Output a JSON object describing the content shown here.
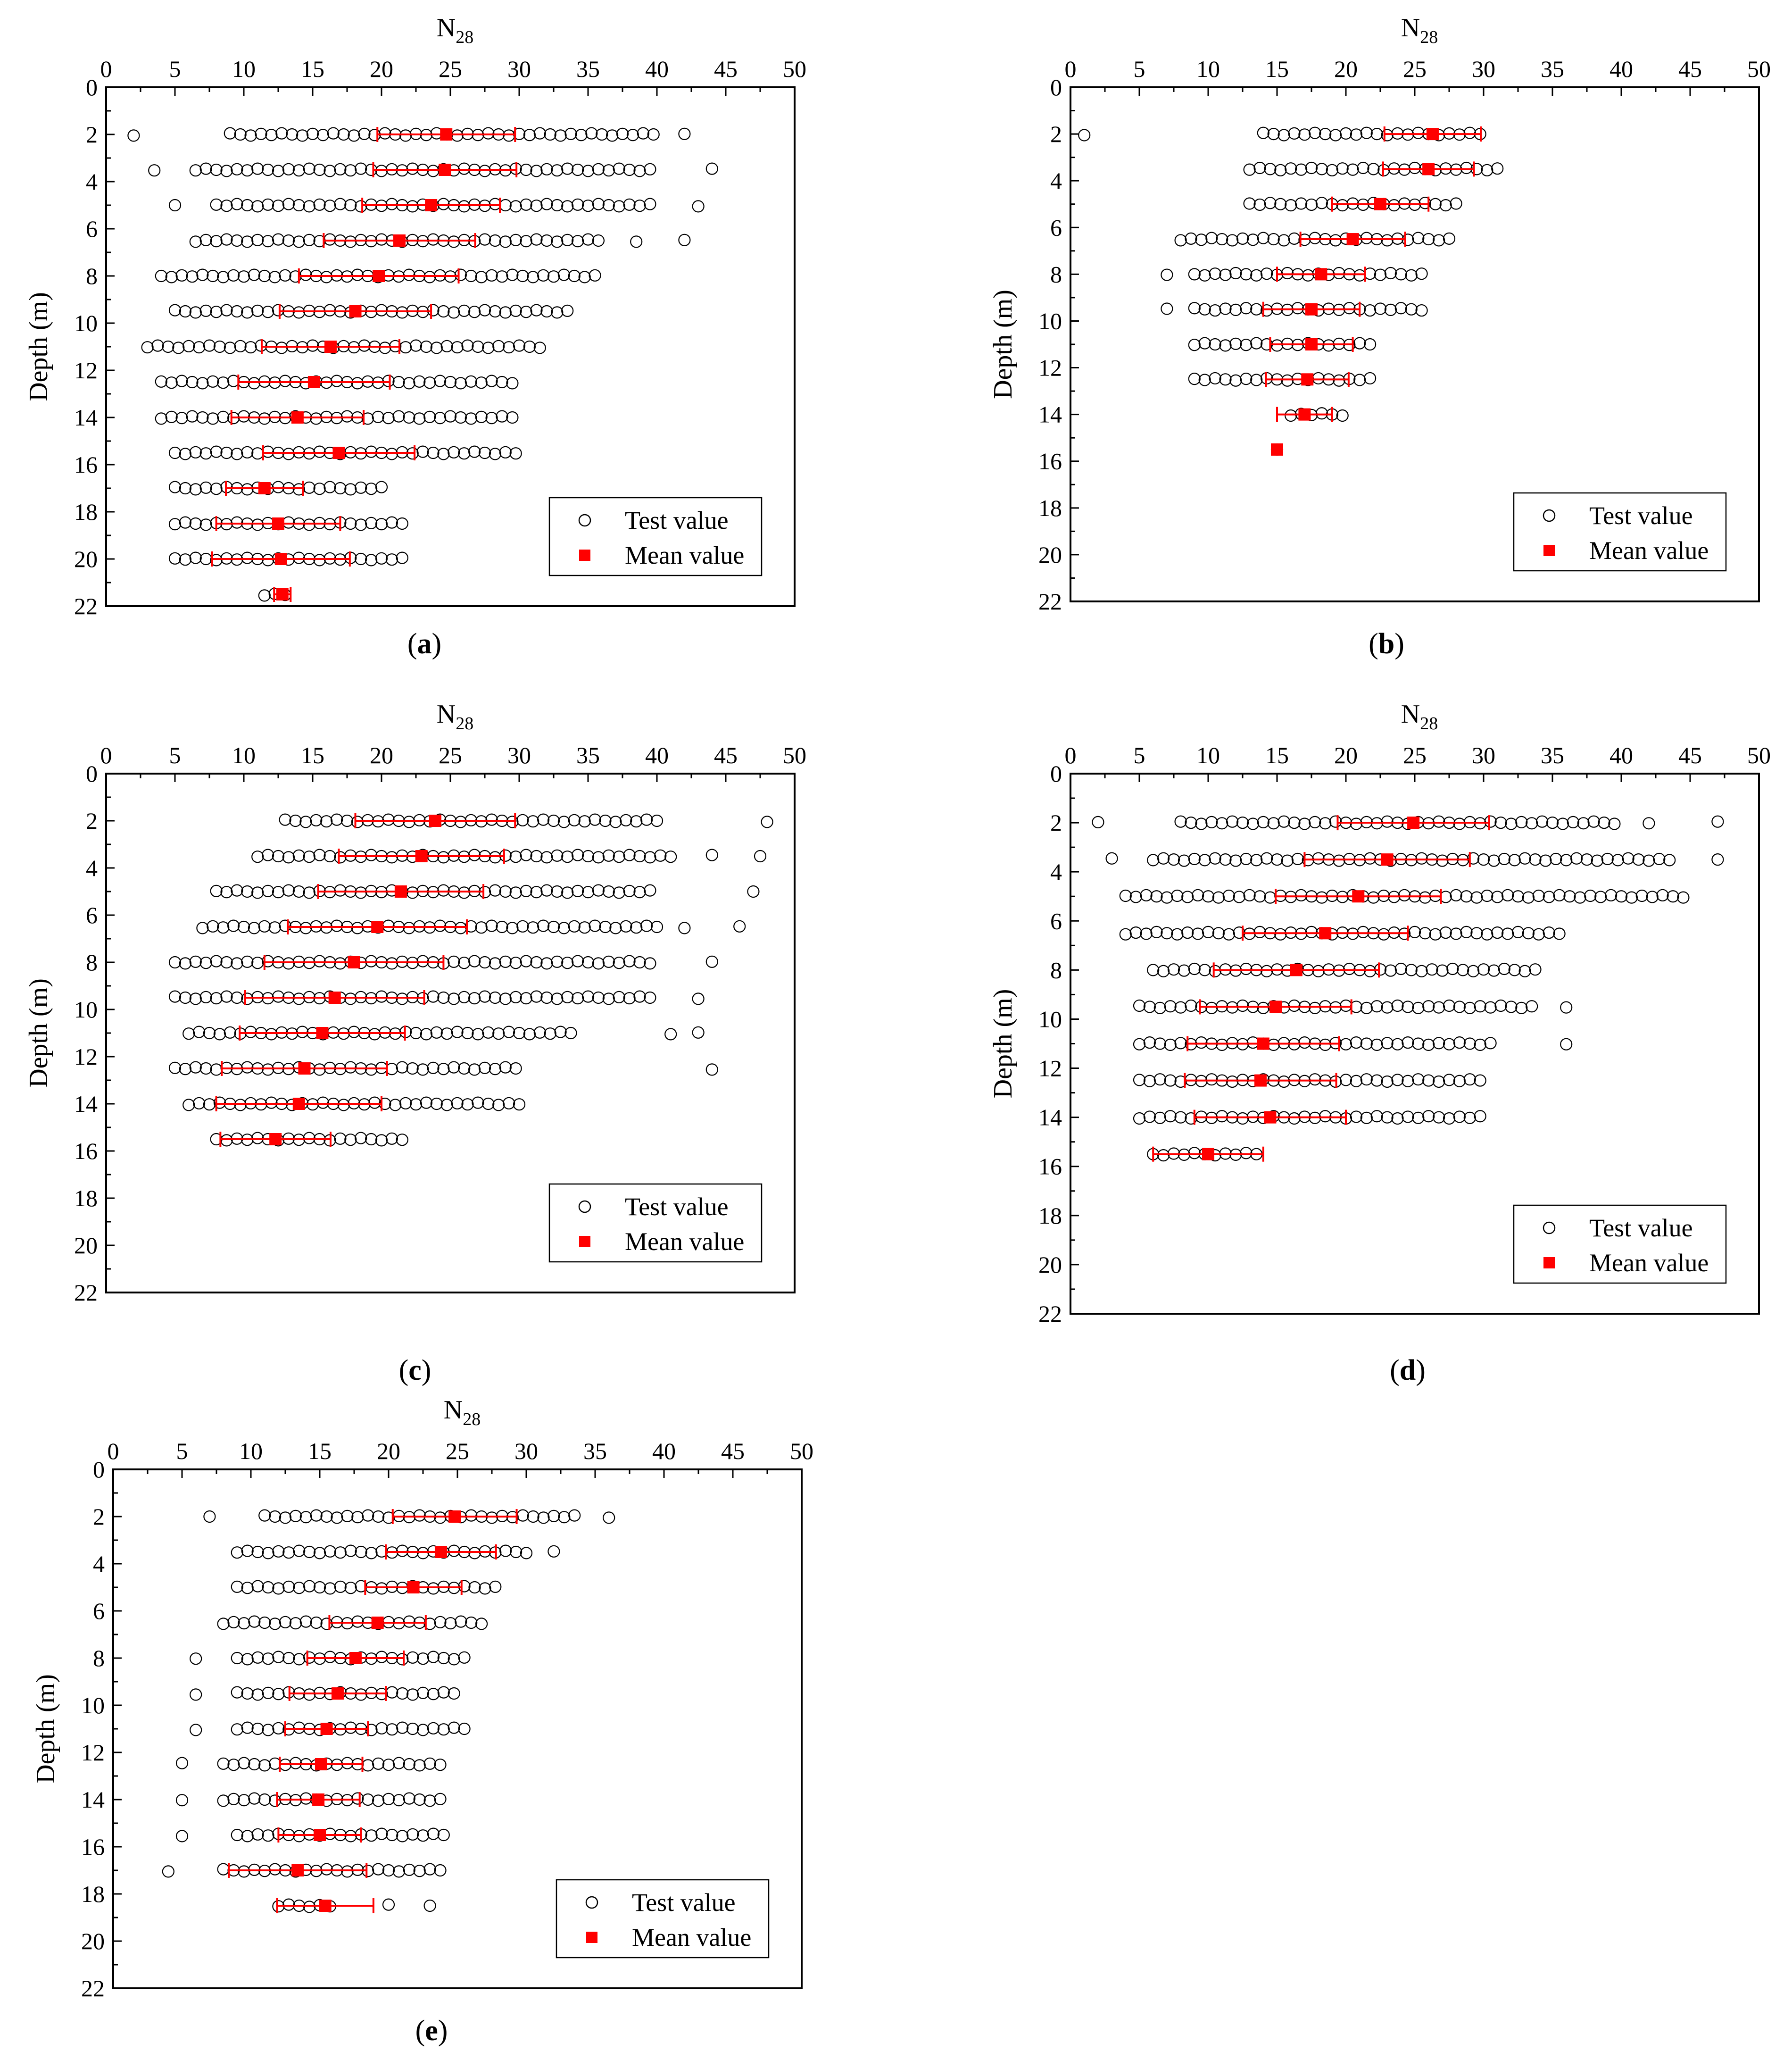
{
  "figure": {
    "colors": {
      "test": "#000000",
      "mean": "#ff0000",
      "axis": "#000000"
    }
  },
  "chart_data": [
    {
      "panel": "(a)",
      "caption": "a",
      "type": "scatter",
      "xlabel_main": "N",
      "xlabel_sub": "28",
      "ylabel": "Depth (m)",
      "xlim": [
        0,
        50
      ],
      "ylim": [
        0,
        22
      ],
      "xticks": [
        "0",
        "5",
        "10",
        "15",
        "20",
        "25",
        "30",
        "35",
        "40",
        "45",
        "50"
      ],
      "yticks": [
        "0",
        "2",
        "4",
        "6",
        "8",
        "10",
        "12",
        "14",
        "16",
        "18",
        "20",
        "22"
      ],
      "legend": {
        "test_label": "Test value",
        "mean_label": "Mean value",
        "position": "bottom-right"
      },
      "rows": [
        {
          "depth": 2,
          "min": 9,
          "max": 40.1,
          "mean": 24.7,
          "sd": 5.0,
          "outliers": [
            2,
            42
          ]
        },
        {
          "depth": 3.5,
          "min": 6.5,
          "max": 40,
          "mean": 24.6,
          "sd": 5.2,
          "outliers": [
            3.5,
            44
          ]
        },
        {
          "depth": 5,
          "min": 8,
          "max": 39.5,
          "mean": 23.6,
          "sd": 5.0,
          "outliers": [
            5,
            43
          ]
        },
        {
          "depth": 6.5,
          "min": 6.5,
          "max": 36,
          "mean": 21.3,
          "sd": 5.5,
          "outliers": [
            38.5,
            42
          ]
        },
        {
          "depth": 8,
          "min": 4,
          "max": 36,
          "mean": 19.8,
          "sd": 5.8,
          "outliers": []
        },
        {
          "depth": 9.5,
          "min": 5,
          "max": 34,
          "mean": 18.1,
          "sd": 5.5,
          "outliers": []
        },
        {
          "depth": 11,
          "min": 3,
          "max": 32,
          "mean": 16.3,
          "sd": 5.0,
          "outliers": []
        },
        {
          "depth": 12.5,
          "min": 4,
          "max": 30,
          "mean": 15.1,
          "sd": 5.5,
          "outliers": []
        },
        {
          "depth": 14,
          "min": 4,
          "max": 30,
          "mean": 13.9,
          "sd": 4.8,
          "outliers": []
        },
        {
          "depth": 15.5,
          "min": 5,
          "max": 30,
          "mean": 16.9,
          "sd": 5.5,
          "outliers": []
        },
        {
          "depth": 17,
          "min": 5,
          "max": 20,
          "mean": 11.5,
          "sd": 2.8,
          "outliers": []
        },
        {
          "depth": 18.5,
          "min": 5,
          "max": 22,
          "mean": 12.5,
          "sd": 4.5,
          "outliers": []
        },
        {
          "depth": 20,
          "min": 5,
          "max": 22,
          "mean": 12.7,
          "sd": 5.0,
          "outliers": []
        },
        {
          "depth": 21.5,
          "min": 11.5,
          "max": 13.5,
          "mean": 12.8,
          "sd": 0.6,
          "outliers": []
        }
      ]
    },
    {
      "panel": "(b)",
      "caption": "b",
      "type": "scatter",
      "xlabel_main": "N",
      "xlabel_sub": "28",
      "ylabel": "Depth (m)",
      "xlim": [
        0,
        50
      ],
      "ylim": [
        0,
        22
      ],
      "xticks": [
        "0",
        "5",
        "10",
        "15",
        "20",
        "25",
        "30",
        "35",
        "40",
        "45",
        "50"
      ],
      "yticks": [
        "0",
        "2",
        "4",
        "6",
        "8",
        "10",
        "12",
        "14",
        "16",
        "18",
        "20",
        "22"
      ],
      "legend": {
        "test_label": "Test value",
        "mean_label": "Mean value",
        "position": "bottom-right"
      },
      "rows": [
        {
          "depth": 2,
          "min": 14,
          "max": 30,
          "mean": 26.3,
          "sd": 3.5,
          "outliers": [
            1
          ]
        },
        {
          "depth": 3.5,
          "min": 13,
          "max": 31,
          "mean": 26.0,
          "sd": 3.3,
          "outliers": []
        },
        {
          "depth": 5,
          "min": 13,
          "max": 28,
          "mean": 22.5,
          "sd": 3.5,
          "outliers": []
        },
        {
          "depth": 6.5,
          "min": 8,
          "max": 28,
          "mean": 20.5,
          "sd": 3.8,
          "outliers": []
        },
        {
          "depth": 8,
          "min": 9,
          "max": 26,
          "mean": 18.2,
          "sd": 3.2,
          "outliers": [
            7
          ]
        },
        {
          "depth": 9.5,
          "min": 9,
          "max": 26,
          "mean": 17.5,
          "sd": 3.5,
          "outliers": [
            7
          ]
        },
        {
          "depth": 11,
          "min": 9,
          "max": 22,
          "mean": 17.5,
          "sd": 3.0,
          "outliers": []
        },
        {
          "depth": 12.5,
          "min": 9,
          "max": 22,
          "mean": 17.2,
          "sd": 3.0,
          "outliers": []
        },
        {
          "depth": 14,
          "min": 16,
          "max": 20,
          "mean": 17.0,
          "sd": 2.0,
          "outliers": []
        },
        {
          "depth": 15.5,
          "min": 15,
          "max": 15,
          "mean": 15.0,
          "sd": 0,
          "outliers": []
        }
      ]
    },
    {
      "panel": "(c)",
      "caption": "c",
      "type": "scatter",
      "xlabel_main": "N",
      "xlabel_sub": "28",
      "ylabel": "Depth (m)",
      "xlim": [
        0,
        50
      ],
      "ylim": [
        0,
        22
      ],
      "xticks": [
        "0",
        "5",
        "10",
        "15",
        "20",
        "25",
        "30",
        "35",
        "40",
        "45",
        "50"
      ],
      "yticks": [
        "0",
        "2",
        "4",
        "6",
        "8",
        "10",
        "12",
        "14",
        "16",
        "18",
        "20",
        "22"
      ],
      "legend": {
        "test_label": "Test value",
        "mean_label": "Mean value",
        "position": "bottom-right"
      },
      "rows": [
        {
          "depth": 2,
          "min": 13,
          "max": 40,
          "mean": 23.9,
          "sd": 5.8,
          "outliers": [
            48
          ]
        },
        {
          "depth": 3.5,
          "min": 11,
          "max": 41,
          "mean": 22.9,
          "sd": 6.0,
          "outliers": [
            44,
            47.5
          ]
        },
        {
          "depth": 5,
          "min": 8,
          "max": 40,
          "mean": 21.4,
          "sd": 6.0,
          "outliers": [
            47
          ]
        },
        {
          "depth": 6.5,
          "min": 7,
          "max": 40,
          "mean": 19.7,
          "sd": 6.5,
          "outliers": [
            42,
            46
          ]
        },
        {
          "depth": 8,
          "min": 5,
          "max": 40,
          "mean": 18.0,
          "sd": 6.5,
          "outliers": [
            44
          ]
        },
        {
          "depth": 9.5,
          "min": 5,
          "max": 40,
          "mean": 16.6,
          "sd": 6.5,
          "outliers": [
            43
          ]
        },
        {
          "depth": 11,
          "min": 6,
          "max": 34,
          "mean": 15.7,
          "sd": 6.0,
          "outliers": [
            41,
            43
          ]
        },
        {
          "depth": 12.5,
          "min": 5,
          "max": 30,
          "mean": 14.4,
          "sd": 6.0,
          "outliers": [
            44
          ]
        },
        {
          "depth": 14,
          "min": 6,
          "max": 30,
          "mean": 14.0,
          "sd": 6.0,
          "outliers": []
        },
        {
          "depth": 15.5,
          "min": 8,
          "max": 22,
          "mean": 12.3,
          "sd": 4.0,
          "outliers": []
        }
      ]
    },
    {
      "panel": "(d)",
      "caption": "d",
      "type": "scatter",
      "xlabel_main": "N",
      "xlabel_sub": "28",
      "ylabel": "Depth (m)",
      "xlim": [
        0,
        50
      ],
      "ylim": [
        0,
        22
      ],
      "xticks": [
        "0",
        "5",
        "10",
        "15",
        "20",
        "25",
        "30",
        "35",
        "40",
        "45",
        "50"
      ],
      "yticks": [
        "0",
        "2",
        "4",
        "6",
        "8",
        "10",
        "12",
        "14",
        "16",
        "18",
        "20",
        "22"
      ],
      "legend": {
        "test_label": "Test value",
        "mean_label": "Mean value",
        "position": "bottom-right"
      },
      "rows": [
        {
          "depth": 2,
          "min": 8,
          "max": 40,
          "mean": 24.9,
          "sd": 5.5,
          "outliers": [
            2,
            42,
            47
          ]
        },
        {
          "depth": 3.5,
          "min": 6,
          "max": 44,
          "mean": 23.0,
          "sd": 6.0,
          "outliers": [
            3,
            47
          ]
        },
        {
          "depth": 5,
          "min": 4,
          "max": 45,
          "mean": 20.9,
          "sd": 6.0,
          "outliers": []
        },
        {
          "depth": 6.5,
          "min": 4,
          "max": 36,
          "mean": 18.5,
          "sd": 6.0,
          "outliers": []
        },
        {
          "depth": 8,
          "min": 6,
          "max": 34,
          "mean": 16.4,
          "sd": 6.0,
          "outliers": []
        },
        {
          "depth": 9.5,
          "min": 5,
          "max": 34,
          "mean": 14.9,
          "sd": 5.5,
          "outliers": [
            36
          ]
        },
        {
          "depth": 11,
          "min": 5,
          "max": 31,
          "mean": 14.0,
          "sd": 5.5,
          "outliers": [
            36
          ]
        },
        {
          "depth": 12.5,
          "min": 5,
          "max": 30,
          "mean": 13.8,
          "sd": 5.5,
          "outliers": []
        },
        {
          "depth": 14,
          "min": 5,
          "max": 30,
          "mean": 14.5,
          "sd": 5.5,
          "outliers": []
        },
        {
          "depth": 15.5,
          "min": 6,
          "max": 14,
          "mean": 10.0,
          "sd": 4.0,
          "outliers": []
        }
      ]
    },
    {
      "panel": "(e)",
      "caption": "e",
      "type": "scatter",
      "xlabel_main": "N",
      "xlabel_sub": "28",
      "ylabel": "Depth (m)",
      "xlim": [
        0,
        50
      ],
      "ylim": [
        0,
        22
      ],
      "xticks": [
        "0",
        "5",
        "10",
        "15",
        "20",
        "25",
        "30",
        "35",
        "40",
        "45",
        "50"
      ],
      "yticks": [
        "0",
        "2",
        "4",
        "6",
        "8",
        "10",
        "12",
        "14",
        "16",
        "18",
        "20",
        "22"
      ],
      "legend": {
        "test_label": "Test value",
        "mean_label": "Mean value",
        "position": "bottom-right"
      },
      "rows": [
        {
          "depth": 2,
          "min": 11,
          "max": 34,
          "mean": 24.8,
          "sd": 4.5,
          "outliers": [
            7,
            36
          ]
        },
        {
          "depth": 3.5,
          "min": 9,
          "max": 30,
          "mean": 23.8,
          "sd": 4.0,
          "outliers": [
            32
          ]
        },
        {
          "depth": 5,
          "min": 9,
          "max": 28,
          "mean": 21.8,
          "sd": 3.5,
          "outliers": []
        },
        {
          "depth": 6.5,
          "min": 8,
          "max": 27,
          "mean": 19.2,
          "sd": 3.5,
          "outliers": []
        },
        {
          "depth": 8,
          "min": 9,
          "max": 26,
          "mean": 17.6,
          "sd": 3.5,
          "outliers": [
            6
          ]
        },
        {
          "depth": 9.5,
          "min": 9,
          "max": 25,
          "mean": 16.3,
          "sd": 3.5,
          "outliers": [
            6
          ]
        },
        {
          "depth": 11,
          "min": 9,
          "max": 26,
          "mean": 15.5,
          "sd": 3.0,
          "outliers": [
            6
          ]
        },
        {
          "depth": 12.5,
          "min": 8,
          "max": 24,
          "mean": 15.1,
          "sd": 3.0,
          "outliers": [
            5
          ]
        },
        {
          "depth": 14,
          "min": 8,
          "max": 24,
          "mean": 14.9,
          "sd": 3.0,
          "outliers": [
            5
          ]
        },
        {
          "depth": 15.5,
          "min": 9,
          "max": 24,
          "mean": 15.0,
          "sd": 3.0,
          "outliers": [
            5
          ]
        },
        {
          "depth": 17,
          "min": 8,
          "max": 24,
          "mean": 13.4,
          "sd": 5.0,
          "outliers": [
            4
          ]
        },
        {
          "depth": 18.5,
          "min": 12,
          "max": 16,
          "mean": 15.4,
          "sd": 3.5,
          "outliers": [
            20,
            23
          ]
        }
      ]
    }
  ]
}
